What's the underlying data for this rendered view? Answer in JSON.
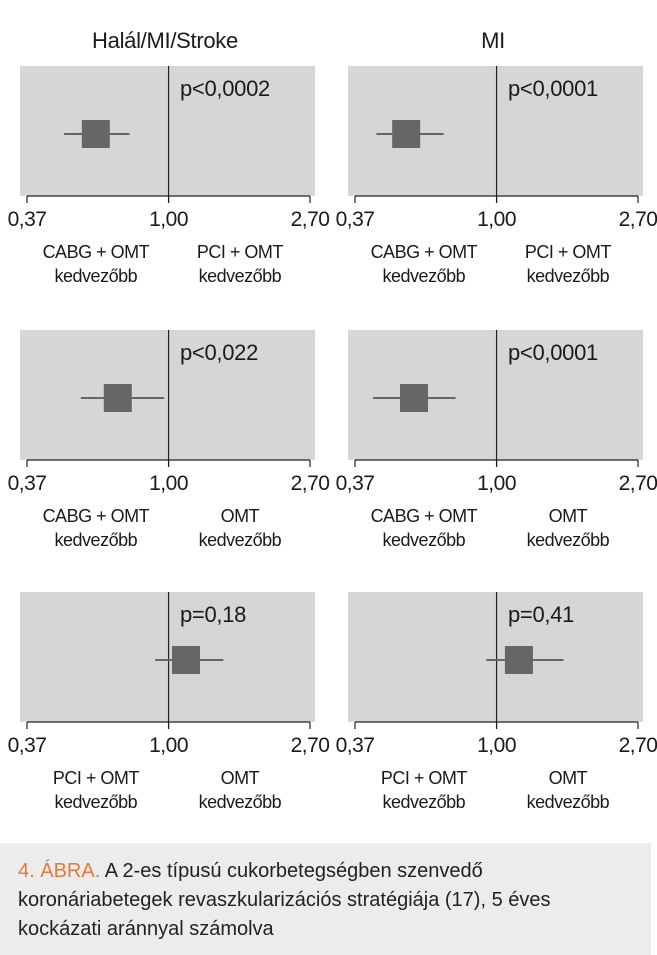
{
  "columns": [
    "Halál/MI/Stroke",
    "MI"
  ],
  "chart_data": [
    {
      "type": "forest",
      "column": "Halál/MI/Stroke",
      "row": 1,
      "p_label": "p<0,0002",
      "estimate": 0.6,
      "ci": [
        0.48,
        0.76
      ],
      "x_ticks": [
        "0,37",
        "1,00",
        "2,70"
      ],
      "xlim": [
        0.37,
        2.7
      ],
      "left_label": [
        "CABG + OMT",
        "kedvezőbb"
      ],
      "right_label": [
        "PCI + OMT",
        "kedvezőbb"
      ]
    },
    {
      "type": "forest",
      "column": "MI",
      "row": 1,
      "p_label": "p<0,0001",
      "estimate": 0.53,
      "ci": [
        0.43,
        0.69
      ],
      "x_ticks": [
        "0,37",
        "1,00",
        "2,70"
      ],
      "xlim": [
        0.37,
        2.7
      ],
      "left_label": [
        "CABG + OMT",
        "kedvezőbb"
      ],
      "right_label": [
        "PCI + OMT",
        "kedvezőbb"
      ]
    },
    {
      "type": "forest",
      "column": "Halál/MI/Stroke",
      "row": 2,
      "p_label": "p<0,022",
      "estimate": 0.7,
      "ci": [
        0.54,
        0.97
      ],
      "x_ticks": [
        "0,37",
        "1,00",
        "2,70"
      ],
      "xlim": [
        0.37,
        2.7
      ],
      "left_label": [
        "CABG + OMT",
        "kedvezőbb"
      ],
      "right_label": [
        "OMT",
        "kedvezőbb"
      ]
    },
    {
      "type": "forest",
      "column": "MI",
      "row": 2,
      "p_label": "p<0,0001",
      "estimate": 0.56,
      "ci": [
        0.42,
        0.75
      ],
      "x_ticks": [
        "0,37",
        "1,00",
        "2,70"
      ],
      "xlim": [
        0.37,
        2.7
      ],
      "left_label": [
        "CABG + OMT",
        "kedvezőbb"
      ],
      "right_label": [
        "OMT",
        "kedvezőbb"
      ]
    },
    {
      "type": "forest",
      "column": "Halál/MI/Stroke",
      "row": 3,
      "p_label": "p=0,18",
      "estimate": 1.13,
      "ci": [
        0.91,
        1.47
      ],
      "x_ticks": [
        "0,37",
        "1,00",
        "2,70"
      ],
      "xlim": [
        0.37,
        2.7
      ],
      "left_label": [
        "PCI + OMT",
        "kedvezőbb"
      ],
      "right_label": [
        "OMT",
        "kedvezőbb"
      ]
    },
    {
      "type": "forest",
      "column": "MI",
      "row": 3,
      "p_label": "p=0,41",
      "estimate": 1.17,
      "ci": [
        0.93,
        1.6
      ],
      "x_ticks": [
        "0,37",
        "1,00",
        "2,70"
      ],
      "xlim": [
        0.37,
        2.7
      ],
      "left_label": [
        "PCI + OMT",
        "kedvezőbb"
      ],
      "right_label": [
        "OMT",
        "kedvezőbb"
      ]
    }
  ],
  "caption": {
    "lead": "4. ÁBRA.",
    "text": " A 2-es típusú cukorbetegségben szenvedő koronáriabetegek revaszkularizációs stratégiája (17), 5 éves kockázati aránnyal számolva"
  },
  "colors": {
    "panel_bg": "#d6d6d6",
    "marker": "#666666",
    "accent": "#e8793a",
    "caption_bg": "#ececec"
  }
}
